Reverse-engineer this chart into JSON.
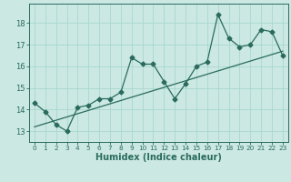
{
  "xlabel": "Humidex (Indice chaleur)",
  "bg_color": "#cbe8e2",
  "line_color": "#2a6b5e",
  "grid_color": "#a8d8d0",
  "xlim": [
    -0.5,
    23.5
  ],
  "ylim": [
    12.5,
    18.9
  ],
  "xticks": [
    0,
    1,
    2,
    3,
    4,
    5,
    6,
    7,
    8,
    9,
    10,
    11,
    12,
    13,
    14,
    15,
    16,
    17,
    18,
    19,
    20,
    21,
    22,
    23
  ],
  "yticks": [
    13,
    14,
    15,
    16,
    17,
    18
  ],
  "data_x": [
    0,
    1,
    2,
    3,
    4,
    5,
    6,
    7,
    8,
    9,
    10,
    11,
    12,
    13,
    14,
    15,
    16,
    17,
    18,
    19,
    20,
    21,
    22,
    23
  ],
  "data_y": [
    14.3,
    13.9,
    13.3,
    13.0,
    14.1,
    14.2,
    14.5,
    14.5,
    14.8,
    16.4,
    16.1,
    16.1,
    15.3,
    14.5,
    15.2,
    16.0,
    16.2,
    18.4,
    17.3,
    16.9,
    17.0,
    17.7,
    17.6,
    16.5
  ],
  "trend_x": [
    0,
    23
  ],
  "trend_y": [
    13.2,
    16.7
  ]
}
